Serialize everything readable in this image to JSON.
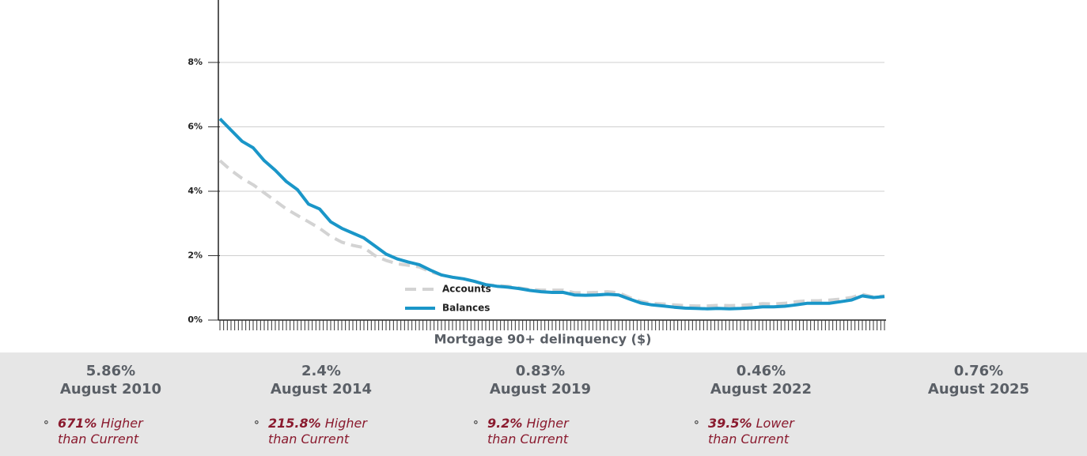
{
  "chart_data": {
    "type": "line",
    "x_label": "Mortgage 90+ delinquency ($)",
    "categories": [
      null,
      null,
      null,
      null,
      null,
      null,
      null,
      null,
      null,
      null,
      null,
      null,
      null,
      null,
      null,
      null,
      null,
      null,
      null,
      null,
      null,
      null,
      null,
      null,
      null,
      null,
      null,
      null,
      null,
      null,
      null,
      null,
      null,
      null,
      null,
      null,
      null,
      null,
      null,
      null,
      null,
      null,
      null,
      null,
      null,
      null,
      null,
      null,
      null,
      null,
      null,
      null,
      null,
      null,
      null,
      null,
      null,
      null,
      null,
      null,
      null
    ],
    "ylim": [
      0,
      10
    ],
    "yticks": [
      {
        "value": 0,
        "label": "0%"
      },
      {
        "value": 2,
        "label": "2%"
      },
      {
        "value": 4,
        "label": "4%"
      },
      {
        "value": 6,
        "label": "6%"
      },
      {
        "value": 8,
        "label": "8%"
      }
    ],
    "grid": true,
    "legend": "lower-center",
    "series": [
      {
        "name": "Accounts",
        "color": "#d3d3d3",
        "dashed": true,
        "values": [
          4.95,
          4.65,
          4.4,
          4.2,
          3.95,
          3.7,
          3.45,
          3.25,
          3.05,
          2.85,
          2.6,
          2.42,
          2.32,
          2.25,
          2.0,
          1.85,
          1.75,
          1.7,
          1.65,
          1.5,
          1.4,
          1.33,
          1.28,
          1.2,
          1.1,
          1.07,
          1.05,
          1.0,
          0.95,
          0.93,
          0.93,
          0.93,
          0.85,
          0.85,
          0.86,
          0.88,
          0.85,
          0.7,
          0.58,
          0.52,
          0.5,
          0.47,
          0.45,
          0.44,
          0.44,
          0.46,
          0.45,
          0.46,
          0.48,
          0.51,
          0.5,
          0.52,
          0.57,
          0.6,
          0.6,
          0.62,
          0.65,
          0.7,
          0.8,
          0.72,
          0.75
        ]
      },
      {
        "name": "Balances",
        "color": "#1a96c8",
        "dashed": false,
        "values": [
          6.25,
          5.9,
          5.55,
          5.35,
          4.95,
          4.65,
          4.3,
          4.05,
          3.6,
          3.45,
          3.05,
          2.85,
          2.7,
          2.55,
          2.3,
          2.05,
          1.9,
          1.8,
          1.72,
          1.55,
          1.4,
          1.33,
          1.28,
          1.2,
          1.1,
          1.05,
          1.02,
          0.98,
          0.92,
          0.88,
          0.86,
          0.86,
          0.78,
          0.77,
          0.78,
          0.8,
          0.78,
          0.65,
          0.53,
          0.47,
          0.44,
          0.4,
          0.37,
          0.36,
          0.35,
          0.36,
          0.35,
          0.36,
          0.38,
          0.41,
          0.41,
          0.43,
          0.47,
          0.52,
          0.52,
          0.52,
          0.57,
          0.62,
          0.75,
          0.7,
          0.73
        ]
      }
    ]
  },
  "stats": [
    {
      "value": "5.86%",
      "date": "August 2010",
      "figure": "671%",
      "text": "Higher than Current"
    },
    {
      "value": "2.4%",
      "date": "August 2014",
      "figure": "215.8%",
      "text": "Higher than Current"
    },
    {
      "value": "0.83%",
      "date": "August 2019",
      "figure": "9.2%",
      "text": "Higher than Current"
    },
    {
      "value": "0.46%",
      "date": "August 2022",
      "figure": "39.5%",
      "text": "Lower than Current"
    },
    {
      "value": "0.76%",
      "date": "August 2025"
    }
  ]
}
